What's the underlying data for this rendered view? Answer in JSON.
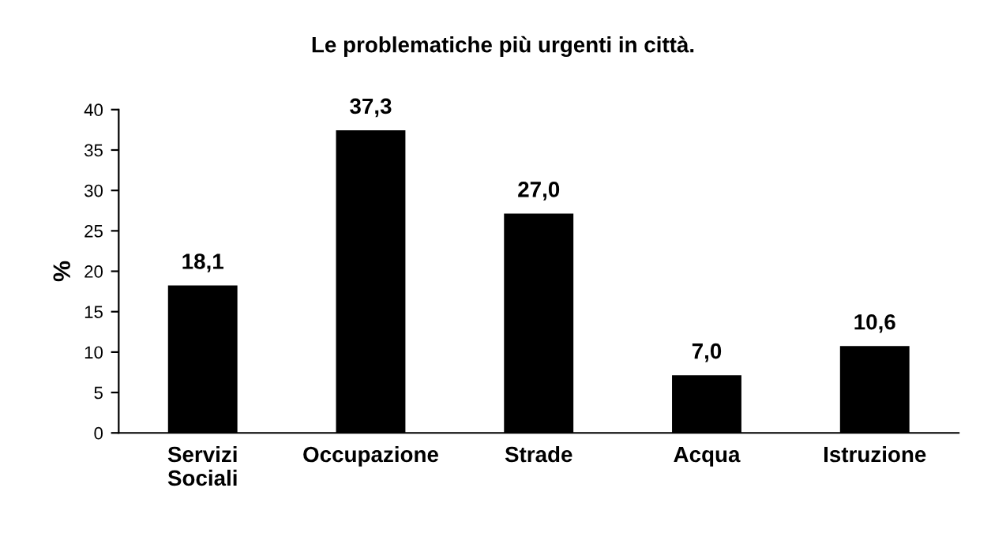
{
  "chart_data": {
    "type": "bar",
    "title": "Le problematiche più urgenti in città.",
    "ylabel": "%",
    "categories": [
      "Servizi\nSociali",
      "Occupazione",
      "Strade",
      "Acqua",
      "Istruzione"
    ],
    "values": [
      18.1,
      37.3,
      27.0,
      7.0,
      10.6
    ],
    "value_labels": [
      "18,1",
      "37,3",
      "27,0",
      "7,0",
      "10,6"
    ],
    "color": "#000000",
    "ylim": [
      0,
      40
    ],
    "yticks": [
      0,
      5,
      10,
      15,
      20,
      25,
      30,
      35,
      40
    ],
    "grid": false,
    "legend": false
  }
}
